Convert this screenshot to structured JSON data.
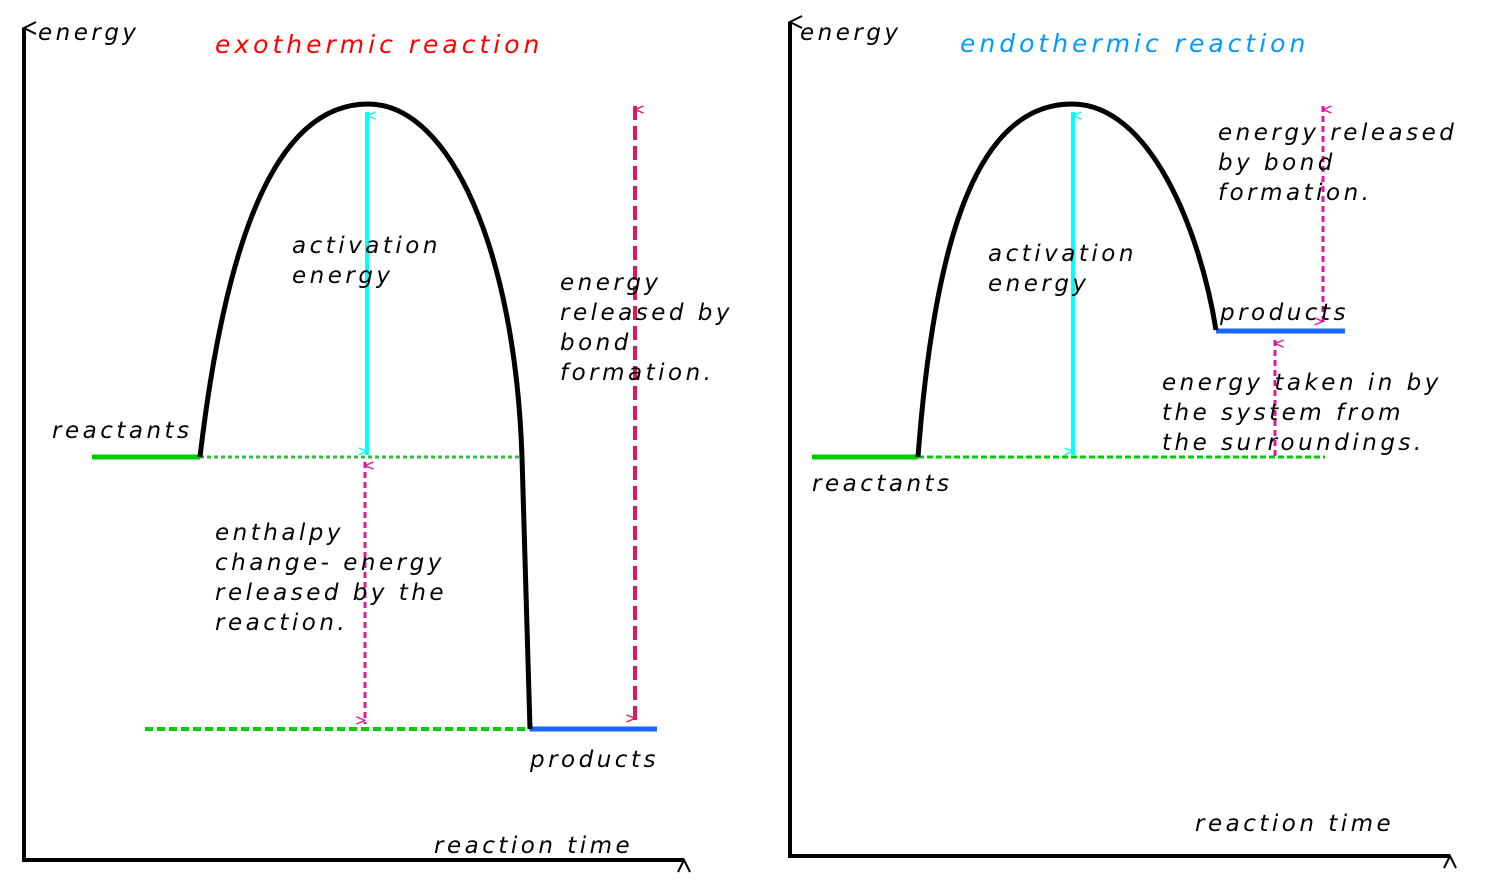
{
  "colors": {
    "axis": "#000000",
    "curve": "#000000",
    "reactants": "#00cc00",
    "products": "#1a66ff",
    "activation": "#00ffff",
    "enthalpy": "#e0199a",
    "bond": "#e0195a",
    "exo_title": "#ff0000",
    "endo_title": "#0099ff"
  },
  "exothermic": {
    "title": "exothermic reaction",
    "y_axis": "energy",
    "x_axis": "reaction time",
    "reactants": "reactants",
    "products": "products",
    "activation": [
      "activation",
      "energy"
    ],
    "enthalpy": [
      "enthalpy",
      "change- energy",
      "released by the",
      "reaction."
    ],
    "bond": [
      "energy",
      "released by",
      "bond",
      "formation."
    ]
  },
  "endothermic": {
    "title": "endothermic reaction",
    "y_axis": "energy",
    "x_axis": "reaction time",
    "reactants": "reactants",
    "products": "products",
    "activation": [
      "activation",
      "energy"
    ],
    "bond": [
      "energy released",
      "by bond",
      "formation."
    ],
    "taken_in": [
      "energy taken in by",
      "the system from",
      "the surroundings."
    ]
  }
}
